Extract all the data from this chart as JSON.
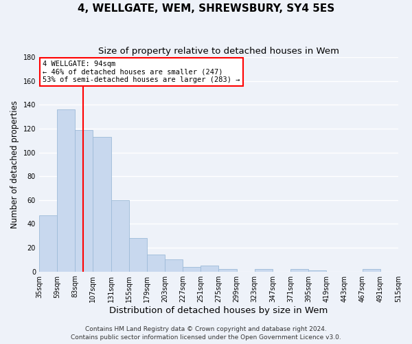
{
  "title": "4, WELLGATE, WEM, SHREWSBURY, SY4 5ES",
  "subtitle": "Size of property relative to detached houses in Wem",
  "xlabel": "Distribution of detached houses by size in Wem",
  "ylabel": "Number of detached properties",
  "bar_color": "#c8d8ee",
  "bar_edgecolor": "#9dbbd8",
  "vline_x": 94,
  "vline_color": "red",
  "annotation_title": "4 WELLGATE: 94sqm",
  "annotation_line1": "← 46% of detached houses are smaller (247)",
  "annotation_line2": "53% of semi-detached houses are larger (283) →",
  "annotation_box_color": "white",
  "annotation_box_edgecolor": "red",
  "bins": [
    35,
    59,
    83,
    107,
    131,
    155,
    179,
    203,
    227,
    251,
    275,
    299,
    323,
    347,
    371,
    395,
    419,
    443,
    467,
    491,
    515
  ],
  "counts": [
    47,
    136,
    119,
    113,
    60,
    28,
    14,
    10,
    4,
    5,
    2,
    0,
    2,
    0,
    2,
    1,
    0,
    0,
    2,
    0
  ],
  "ylim": [
    0,
    180
  ],
  "yticks": [
    0,
    20,
    40,
    60,
    80,
    100,
    120,
    140,
    160,
    180
  ],
  "footer1": "Contains HM Land Registry data © Crown copyright and database right 2024.",
  "footer2": "Contains public sector information licensed under the Open Government Licence v3.0.",
  "background_color": "#eef2f9",
  "grid_color": "white",
  "title_fontsize": 11,
  "subtitle_fontsize": 9.5,
  "xlabel_fontsize": 9.5,
  "ylabel_fontsize": 8.5,
  "tick_fontsize": 7,
  "footer_fontsize": 6.5
}
